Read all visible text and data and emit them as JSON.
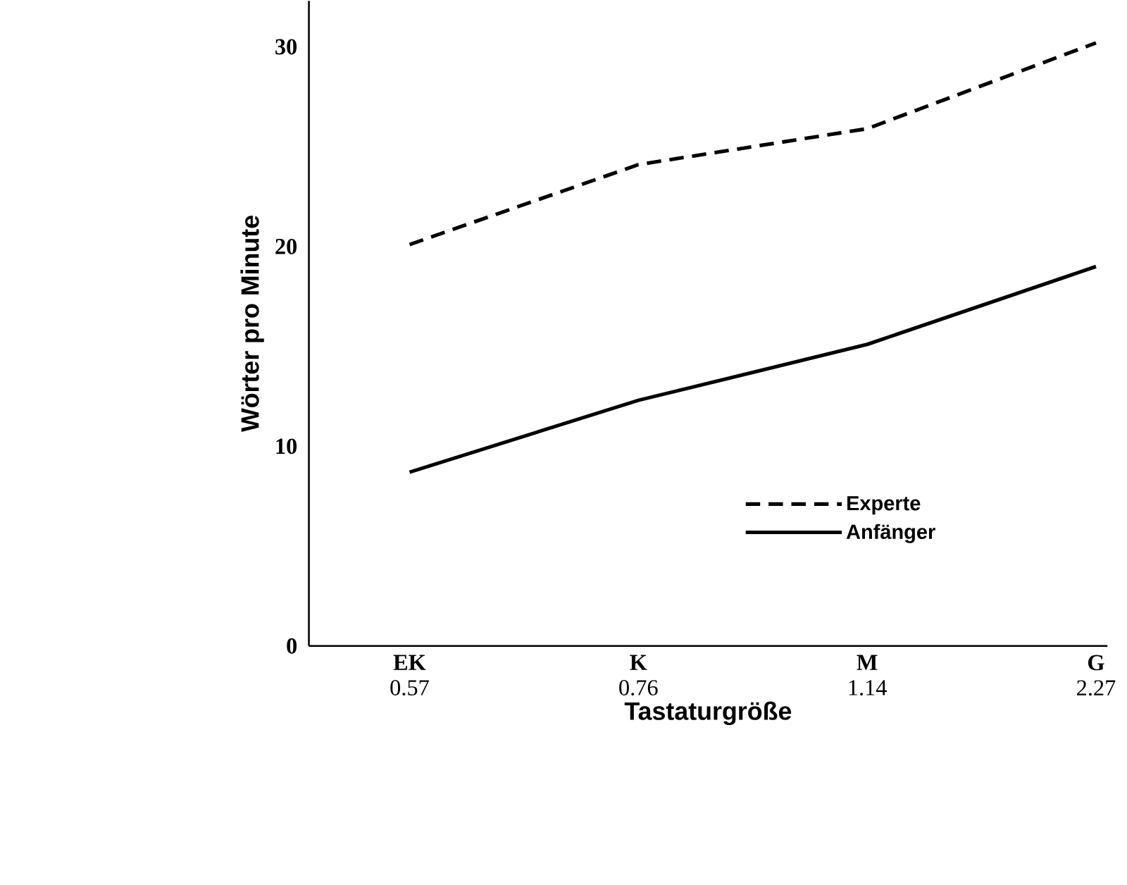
{
  "chart_data": {
    "type": "line",
    "xlabel": "Tastaturgröße",
    "ylabel": "Wörter pro Minute",
    "categories": [
      "**EK** 0.57",
      "**K** 0.76",
      "**M** 1.14",
      "**G** 2.27"
    ],
    "series": [
      {
        "name": "Experte",
        "color": "#000000",
        "line_style": "dashed",
        "values": [
          20.1,
          24.1,
          25.9,
          30.2
        ]
      },
      {
        "name": "Anfänger",
        "color": "#000000",
        "line_style": "solid",
        "values": [
          8.7,
          12.3,
          15.1,
          19.0
        ]
      }
    ],
    "ylim": [
      0,
      32.3
    ],
    "yticks": [
      0,
      10,
      20,
      30
    ],
    "grid": false,
    "legend": "bottom right"
  }
}
